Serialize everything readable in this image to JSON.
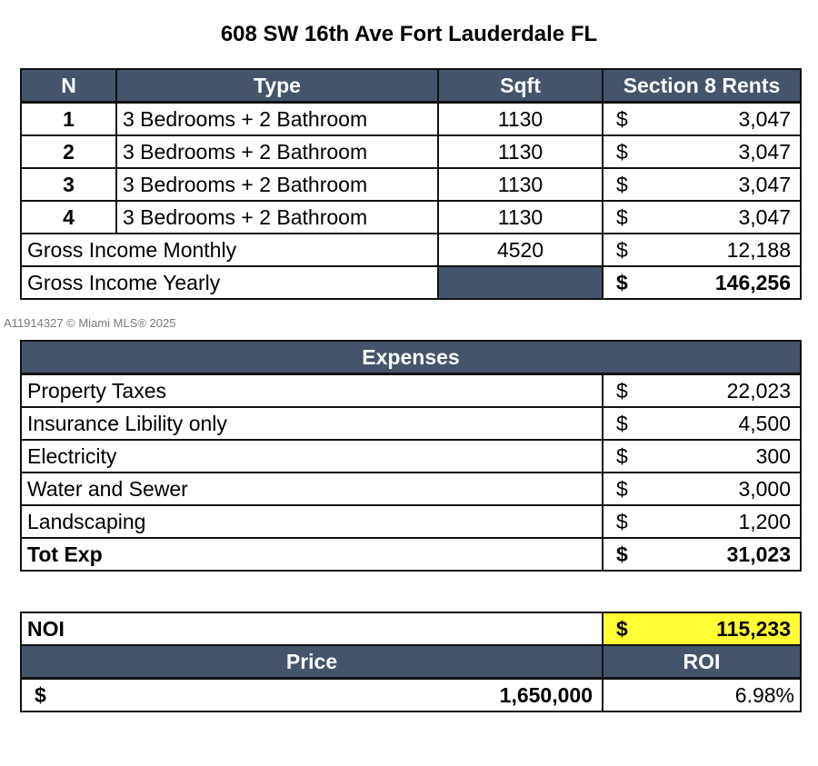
{
  "title": "608 SW 16th Ave Fort Lauderdale FL",
  "watermark": "A11914327 © Miami MLS® 2025",
  "units": {
    "headers": [
      "N",
      "Type",
      "Sqft",
      "Section 8 Rents"
    ],
    "rows": [
      {
        "n": "1",
        "type": "3 Bedrooms + 2 Bathroom",
        "sqft": "1130",
        "cur": "$",
        "rent": "3,047"
      },
      {
        "n": "2",
        "type": "3 Bedrooms + 2 Bathroom",
        "sqft": "1130",
        "cur": "$",
        "rent": "3,047"
      },
      {
        "n": "3",
        "type": "3 Bedrooms + 2 Bathroom",
        "sqft": "1130",
        "cur": "$",
        "rent": "3,047"
      },
      {
        "n": "4",
        "type": "3 Bedrooms + 2 Bathroom",
        "sqft": "1130",
        "cur": "$",
        "rent": "3,047"
      }
    ],
    "gross_monthly": {
      "label": "Gross Income Monthly",
      "sqft": "4520",
      "cur": "$",
      "value": "12,188"
    },
    "gross_yearly": {
      "label": "Gross Income Yearly",
      "cur": "$",
      "value": "146,256"
    }
  },
  "expenses": {
    "header": "Expenses",
    "rows": [
      {
        "label": "Property Taxes",
        "cur": "$",
        "value": "22,023"
      },
      {
        "label": "Insurance Libility only",
        "cur": "$",
        "value": "4,500"
      },
      {
        "label": "Electricity",
        "cur": "$",
        "value": "300"
      },
      {
        "label": "Water and Sewer",
        "cur": "$",
        "value": "3,000"
      },
      {
        "label": "Landscaping",
        "cur": "$",
        "value": "1,200"
      }
    ],
    "total": {
      "label": "Tot Exp",
      "cur": "$",
      "value": "31,023"
    }
  },
  "summary": {
    "noi_label": "NOI",
    "noi_cur": "$",
    "noi_value": "115,233",
    "price_header": "Price",
    "roi_header": "ROI",
    "price_cur": "$",
    "price_value": "1,650,000",
    "roi_value": "6.98%"
  },
  "colors": {
    "header": "#44546a",
    "highlight": "#ffff33"
  }
}
